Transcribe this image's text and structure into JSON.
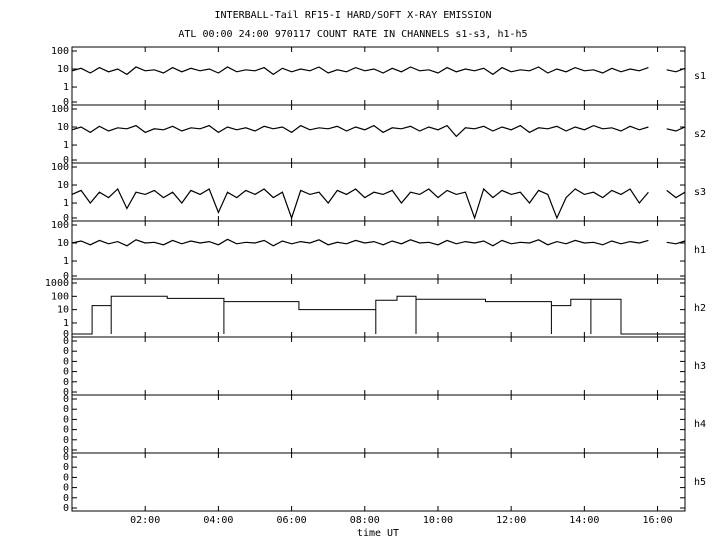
{
  "chart_data": {
    "title": "INTERBALL-Tail RF15-I HARD/SOFT X-RAY EMISSION",
    "subtitle": "ATL 00:00 24:00 970117  COUNT RATE IN CHANNELS s1-s3, h1-h5",
    "xlabel": "time UT",
    "xlim": [
      0,
      16.75
    ],
    "xticks": [
      {
        "value": 2,
        "label": "02:00"
      },
      {
        "value": 4,
        "label": "04:00"
      },
      {
        "value": 6,
        "label": "06:00"
      },
      {
        "value": 8,
        "label": "08:00"
      },
      {
        "value": 10,
        "label": "10:00"
      },
      {
        "value": 12,
        "label": "12:00"
      },
      {
        "value": 14,
        "label": "14:00"
      },
      {
        "value": 16,
        "label": "16:00"
      }
    ],
    "x": [
      0,
      0.25,
      0.5,
      0.75,
      1,
      1.25,
      1.5,
      1.75,
      2,
      2.25,
      2.5,
      2.75,
      3,
      3.25,
      3.5,
      3.75,
      4,
      4.25,
      4.5,
      4.75,
      5,
      5.25,
      5.5,
      5.75,
      6,
      6.25,
      6.5,
      6.75,
      7,
      7.25,
      7.5,
      7.75,
      8,
      8.25,
      8.5,
      8.75,
      9,
      9.25,
      9.5,
      9.75,
      10,
      10.25,
      10.5,
      10.75,
      11,
      11.25,
      11.5,
      11.75,
      12,
      12.25,
      12.5,
      12.75,
      13,
      13.25,
      13.5,
      13.75,
      14,
      14.25,
      14.5,
      14.75,
      15,
      15.25,
      15.5,
      15.75,
      16,
      16.25,
      16.5,
      16.75
    ],
    "panels": [
      {
        "type": "line",
        "name": "s1",
        "yscale": "log",
        "ylim": [
          0,
          100
        ],
        "yticks": [
          0,
          1,
          10,
          100
        ],
        "values": [
          8,
          11,
          6,
          12,
          7,
          10,
          5,
          13,
          8,
          9,
          6,
          12,
          7,
          11,
          8,
          10,
          6,
          13,
          7,
          9,
          8,
          12,
          5,
          11,
          7,
          10,
          8,
          13,
          6,
          9,
          7,
          12,
          8,
          10,
          6,
          11,
          7,
          13,
          8,
          9,
          6,
          12,
          7,
          10,
          8,
          11,
          5,
          12,
          7,
          9,
          8,
          13,
          6,
          10,
          7,
          12,
          8,
          9,
          6,
          11,
          7,
          10,
          8,
          12,
          null,
          9,
          7,
          11
        ]
      },
      {
        "type": "line",
        "name": "s2",
        "yscale": "log",
        "ylim": [
          0,
          100
        ],
        "yticks": [
          0,
          1,
          10,
          100
        ],
        "values": [
          7,
          10,
          5,
          11,
          6,
          9,
          8,
          12,
          5,
          8,
          7,
          11,
          6,
          9,
          8,
          12,
          5,
          10,
          7,
          9,
          6,
          11,
          8,
          10,
          5,
          12,
          7,
          9,
          8,
          11,
          6,
          10,
          7,
          12,
          5,
          9,
          8,
          11,
          6,
          10,
          7,
          12,
          3,
          9,
          8,
          11,
          6,
          10,
          7,
          12,
          5,
          9,
          8,
          11,
          6,
          10,
          7,
          12,
          8,
          9,
          6,
          11,
          7,
          10,
          null,
          8,
          6,
          10
        ]
      },
      {
        "type": "line",
        "name": "s3",
        "yscale": "log",
        "ylim": [
          0,
          100
        ],
        "yticks": [
          0,
          1,
          10,
          100
        ],
        "values": [
          3,
          5,
          1,
          4,
          2,
          6,
          0.5,
          4,
          3,
          5,
          2,
          4,
          1,
          5,
          3,
          6,
          0.3,
          4,
          2,
          5,
          3,
          6,
          2,
          4,
          0,
          5,
          3,
          4,
          1,
          5,
          3,
          6,
          2,
          4,
          3,
          5,
          1,
          4,
          3,
          6,
          2,
          5,
          3,
          4,
          0,
          6,
          2,
          5,
          3,
          4,
          1,
          5,
          3,
          0,
          2,
          6,
          3,
          4,
          2,
          5,
          3,
          6,
          1,
          4,
          null,
          5,
          2,
          4
        ]
      },
      {
        "type": "line",
        "name": "h1",
        "yscale": "log",
        "ylim": [
          0,
          100
        ],
        "yticks": [
          0,
          1,
          10,
          100
        ],
        "values": [
          10,
          13,
          8,
          14,
          9,
          12,
          7,
          15,
          10,
          11,
          8,
          14,
          9,
          13,
          10,
          12,
          8,
          16,
          9,
          11,
          10,
          14,
          7,
          13,
          9,
          12,
          10,
          15,
          8,
          11,
          9,
          14,
          10,
          12,
          8,
          13,
          9,
          15,
          10,
          11,
          8,
          14,
          9,
          12,
          10,
          13,
          7,
          14,
          9,
          11,
          10,
          15,
          8,
          12,
          9,
          14,
          10,
          11,
          8,
          13,
          9,
          12,
          10,
          14,
          null,
          11,
          9,
          13
        ]
      },
      {
        "type": "step",
        "name": "h2",
        "yscale": "log",
        "ylim": [
          0,
          1000
        ],
        "yticks": [
          0,
          1,
          10,
          100,
          1000
        ],
        "x": [
          0,
          0.55,
          1.07,
          1.07,
          2.6,
          4.15,
          4.15,
          6.2,
          8.3,
          8.3,
          8.88,
          9.4,
          9.4,
          11.3,
          13.1,
          13.1,
          13.63,
          14.18,
          14.18,
          15.0
        ],
        "values": [
          0,
          20,
          0,
          100,
          70,
          0,
          40,
          10,
          0,
          50,
          100,
          0,
          60,
          40,
          0,
          20,
          60,
          0,
          60,
          0
        ]
      },
      {
        "type": "empty",
        "name": "h3",
        "ylim": [
          0,
          1
        ],
        "yticks": [
          {
            "value": 0,
            "label": "0"
          },
          {
            "value": 0.2,
            "label": "0"
          },
          {
            "value": 0.4,
            "label": "0"
          },
          {
            "value": 0.6,
            "label": "0"
          },
          {
            "value": 0.8,
            "label": "0"
          },
          {
            "value": 1,
            "label": "0"
          }
        ]
      },
      {
        "type": "empty",
        "name": "h4",
        "ylim": [
          0,
          1
        ],
        "yticks": [
          {
            "value": 0,
            "label": "0"
          },
          {
            "value": 0.2,
            "label": "0"
          },
          {
            "value": 0.4,
            "label": "0"
          },
          {
            "value": 0.6,
            "label": "0"
          },
          {
            "value": 0.8,
            "label": "0"
          },
          {
            "value": 1,
            "label": "0"
          }
        ]
      },
      {
        "type": "empty",
        "name": "h5",
        "ylim": [
          0,
          1
        ],
        "yticks": [
          {
            "value": 0,
            "label": "0"
          },
          {
            "value": 0.2,
            "label": "0"
          },
          {
            "value": 0.4,
            "label": "0"
          },
          {
            "value": 0.6,
            "label": "0"
          },
          {
            "value": 0.8,
            "label": "0"
          },
          {
            "value": 1,
            "label": "0"
          }
        ]
      }
    ]
  }
}
